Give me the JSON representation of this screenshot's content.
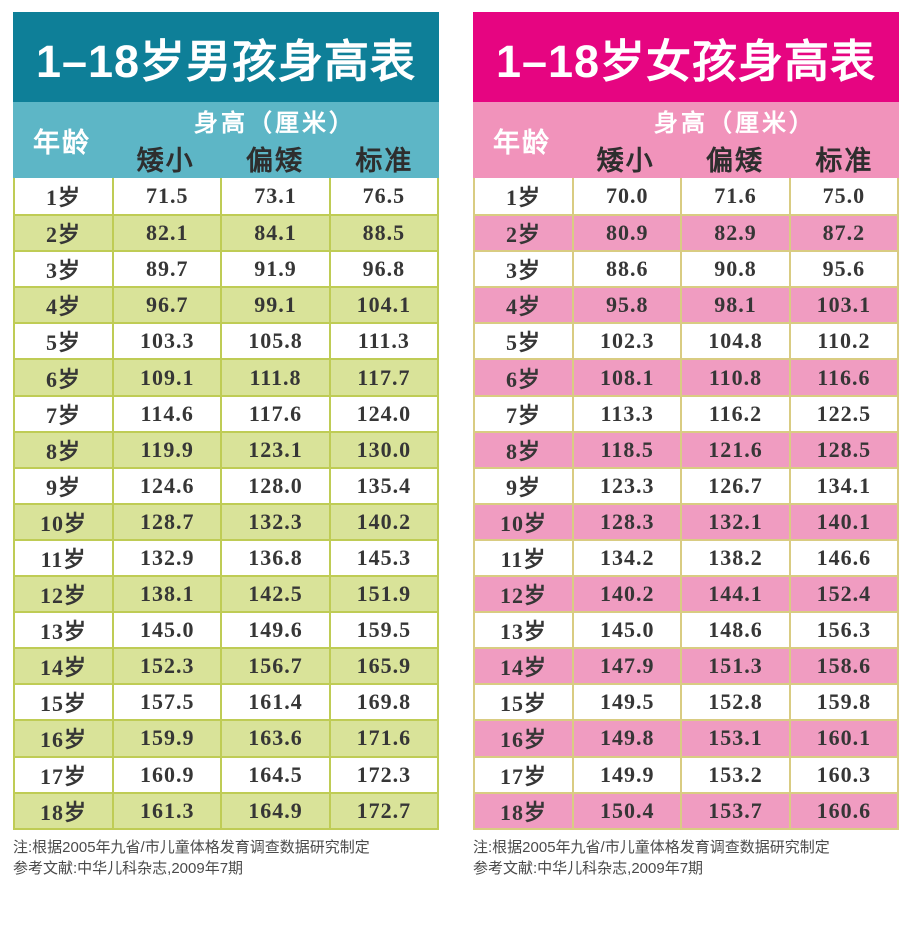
{
  "chart_data": [
    {
      "type": "table",
      "title": "1–18岁男孩身高表",
      "header": {
        "age": "年龄",
        "group": "身高（厘米）",
        "cols": [
          "矮小",
          "偏矮",
          "标准"
        ]
      },
      "rows": [
        {
          "age": "1岁",
          "values": [
            "71.5",
            "73.1",
            "76.5"
          ]
        },
        {
          "age": "2岁",
          "values": [
            "82.1",
            "84.1",
            "88.5"
          ]
        },
        {
          "age": "3岁",
          "values": [
            "89.7",
            "91.9",
            "96.8"
          ]
        },
        {
          "age": "4岁",
          "values": [
            "96.7",
            "99.1",
            "104.1"
          ]
        },
        {
          "age": "5岁",
          "values": [
            "103.3",
            "105.8",
            "111.3"
          ]
        },
        {
          "age": "6岁",
          "values": [
            "109.1",
            "111.8",
            "117.7"
          ]
        },
        {
          "age": "7岁",
          "values": [
            "114.6",
            "117.6",
            "124.0"
          ]
        },
        {
          "age": "8岁",
          "values": [
            "119.9",
            "123.1",
            "130.0"
          ]
        },
        {
          "age": "9岁",
          "values": [
            "124.6",
            "128.0",
            "135.4"
          ]
        },
        {
          "age": "10岁",
          "values": [
            "128.7",
            "132.3",
            "140.2"
          ]
        },
        {
          "age": "11岁",
          "values": [
            "132.9",
            "136.8",
            "145.3"
          ]
        },
        {
          "age": "12岁",
          "values": [
            "138.1",
            "142.5",
            "151.9"
          ]
        },
        {
          "age": "13岁",
          "values": [
            "145.0",
            "149.6",
            "159.5"
          ]
        },
        {
          "age": "14岁",
          "values": [
            "152.3",
            "156.7",
            "165.9"
          ]
        },
        {
          "age": "15岁",
          "values": [
            "157.5",
            "161.4",
            "169.8"
          ]
        },
        {
          "age": "16岁",
          "values": [
            "159.9",
            "163.6",
            "171.6"
          ]
        },
        {
          "age": "17岁",
          "values": [
            "160.9",
            "164.5",
            "172.3"
          ]
        },
        {
          "age": "18岁",
          "values": [
            "161.3",
            "164.9",
            "172.7"
          ]
        }
      ],
      "notes": [
        "注:根据2005年九省/市儿童体格发育调查数据研究制定",
        "参考文献:中华儿科杂志,2009年7期"
      ],
      "theme": {
        "title_bg": "#0e7f98",
        "header_bg": "#5db6c6",
        "alt_bg": "#d9e399",
        "border": "#bfcc55",
        "title_color": "#ffffff",
        "header_color": "#ffffff",
        "colhead_color": "#2e2e2e"
      }
    },
    {
      "type": "table",
      "title": "1–18岁女孩身高表",
      "header": {
        "age": "年龄",
        "group": "身高（厘米）",
        "cols": [
          "矮小",
          "偏矮",
          "标准"
        ]
      },
      "rows": [
        {
          "age": "1岁",
          "values": [
            "70.0",
            "71.6",
            "75.0"
          ]
        },
        {
          "age": "2岁",
          "values": [
            "80.9",
            "82.9",
            "87.2"
          ]
        },
        {
          "age": "3岁",
          "values": [
            "88.6",
            "90.8",
            "95.6"
          ]
        },
        {
          "age": "4岁",
          "values": [
            "95.8",
            "98.1",
            "103.1"
          ]
        },
        {
          "age": "5岁",
          "values": [
            "102.3",
            "104.8",
            "110.2"
          ]
        },
        {
          "age": "6岁",
          "values": [
            "108.1",
            "110.8",
            "116.6"
          ]
        },
        {
          "age": "7岁",
          "values": [
            "113.3",
            "116.2",
            "122.5"
          ]
        },
        {
          "age": "8岁",
          "values": [
            "118.5",
            "121.6",
            "128.5"
          ]
        },
        {
          "age": "9岁",
          "values": [
            "123.3",
            "126.7",
            "134.1"
          ]
        },
        {
          "age": "10岁",
          "values": [
            "128.3",
            "132.1",
            "140.1"
          ]
        },
        {
          "age": "11岁",
          "values": [
            "134.2",
            "138.2",
            "146.6"
          ]
        },
        {
          "age": "12岁",
          "values": [
            "140.2",
            "144.1",
            "152.4"
          ]
        },
        {
          "age": "13岁",
          "values": [
            "145.0",
            "148.6",
            "156.3"
          ]
        },
        {
          "age": "14岁",
          "values": [
            "147.9",
            "151.3",
            "158.6"
          ]
        },
        {
          "age": "15岁",
          "values": [
            "149.5",
            "152.8",
            "159.8"
          ]
        },
        {
          "age": "16岁",
          "values": [
            "149.8",
            "153.1",
            "160.1"
          ]
        },
        {
          "age": "17岁",
          "values": [
            "149.9",
            "153.2",
            "160.3"
          ]
        },
        {
          "age": "18岁",
          "values": [
            "150.4",
            "153.7",
            "160.6"
          ]
        }
      ],
      "notes": [
        "注:根据2005年九省/市儿童体格发育调查数据研究制定",
        "参考文献:中华儿科杂志,2009年7期"
      ],
      "theme": {
        "title_bg": "#e60581",
        "header_bg": "#f193bb",
        "alt_bg": "#f09cc1",
        "border": "#d9cc82",
        "title_color": "#ffffff",
        "header_color": "#ffffff",
        "colhead_color": "#2e2e2e"
      }
    }
  ]
}
